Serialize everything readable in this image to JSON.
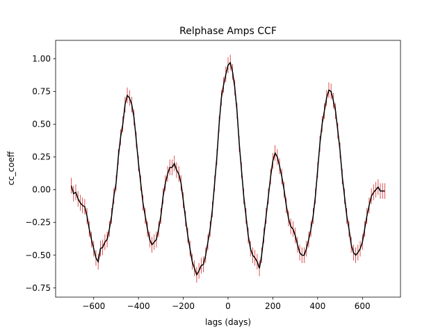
{
  "chart_data": {
    "type": "errorbar",
    "title": "Relphase Amps CCF",
    "xlabel": "lags (days)",
    "ylabel": "cc_coeff",
    "x": [
      -700,
      -690,
      -680,
      -670,
      -660,
      -650,
      -640,
      -630,
      -620,
      -610,
      -600,
      -590,
      -580,
      -570,
      -560,
      -550,
      -540,
      -530,
      -520,
      -510,
      -500,
      -490,
      -480,
      -470,
      -460,
      -450,
      -440,
      -430,
      -420,
      -410,
      -400,
      -390,
      -380,
      -370,
      -360,
      -350,
      -340,
      -330,
      -320,
      -310,
      -300,
      -290,
      -280,
      -270,
      -260,
      -250,
      -240,
      -230,
      -220,
      -210,
      -200,
      -190,
      -180,
      -170,
      -160,
      -150,
      -140,
      -130,
      -120,
      -110,
      -100,
      -90,
      -80,
      -70,
      -60,
      -50,
      -40,
      -30,
      -20,
      -10,
      0,
      10,
      20,
      30,
      40,
      50,
      60,
      70,
      80,
      90,
      100,
      110,
      120,
      130,
      140,
      150,
      160,
      170,
      180,
      190,
      200,
      210,
      220,
      230,
      240,
      250,
      260,
      270,
      280,
      290,
      300,
      310,
      320,
      330,
      340,
      350,
      360,
      370,
      380,
      390,
      400,
      410,
      420,
      430,
      440,
      450,
      460,
      470,
      480,
      490,
      500,
      510,
      520,
      530,
      540,
      550,
      560,
      570,
      580,
      590,
      600,
      610,
      620,
      630,
      640,
      650,
      660,
      670,
      680,
      690,
      700
    ],
    "series": [
      {
        "color": "#000000",
        "error_color": "#d62728",
        "yerr": 0.06,
        "values": [
          0.03,
          -0.03,
          -0.02,
          -0.07,
          -0.1,
          -0.12,
          -0.13,
          -0.2,
          -0.3,
          -0.38,
          -0.45,
          -0.52,
          -0.55,
          -0.45,
          -0.44,
          -0.4,
          -0.38,
          -0.3,
          -0.2,
          -0.05,
          0.05,
          0.25,
          0.4,
          0.5,
          0.65,
          0.72,
          0.7,
          0.65,
          0.55,
          0.38,
          0.2,
          0.05,
          -0.1,
          -0.2,
          -0.3,
          -0.38,
          -0.42,
          -0.4,
          -0.38,
          -0.3,
          -0.2,
          -0.05,
          0.05,
          0.12,
          0.17,
          0.17,
          0.2,
          0.15,
          0.12,
          0.05,
          -0.08,
          -0.22,
          -0.35,
          -0.45,
          -0.55,
          -0.6,
          -0.65,
          -0.62,
          -0.58,
          -0.57,
          -0.5,
          -0.4,
          -0.3,
          -0.15,
          0.05,
          0.25,
          0.5,
          0.7,
          0.8,
          0.88,
          0.95,
          0.97,
          0.9,
          0.78,
          0.6,
          0.35,
          0.15,
          -0.05,
          -0.2,
          -0.35,
          -0.45,
          -0.5,
          -0.52,
          -0.55,
          -0.6,
          -0.5,
          -0.35,
          -0.2,
          -0.05,
          0.1,
          0.22,
          0.28,
          0.25,
          0.18,
          0.1,
          0.0,
          -0.12,
          -0.22,
          -0.28,
          -0.3,
          -0.35,
          -0.42,
          -0.48,
          -0.5,
          -0.5,
          -0.45,
          -0.38,
          -0.3,
          -0.2,
          -0.05,
          0.15,
          0.35,
          0.5,
          0.6,
          0.7,
          0.76,
          0.75,
          0.68,
          0.6,
          0.45,
          0.3,
          0.1,
          -0.05,
          -0.2,
          -0.3,
          -0.42,
          -0.48,
          -0.5,
          -0.48,
          -0.45,
          -0.4,
          -0.3,
          -0.2,
          -0.12,
          -0.05,
          -0.02,
          0.0,
          0.02,
          -0.01,
          -0.01,
          -0.01
        ]
      }
    ],
    "xlim": [
      -770,
      770
    ],
    "ylim": [
      -0.82,
      1.14
    ],
    "xticks": [
      {
        "value": -600,
        "label": "−600"
      },
      {
        "value": -400,
        "label": "−400"
      },
      {
        "value": -200,
        "label": "−200"
      },
      0,
      200,
      400,
      600
    ],
    "yticks": [
      {
        "value": -0.75,
        "label": "−0.75"
      },
      {
        "value": -0.5,
        "label": "−0.50"
      },
      {
        "value": -0.25,
        "label": "−0.25"
      },
      {
        "value": 0,
        "label": "0.00"
      },
      {
        "value": 0.25,
        "label": "0.25"
      },
      {
        "value": 0.5,
        "label": "0.50"
      },
      {
        "value": 0.75,
        "label": "0.75"
      },
      {
        "value": 1,
        "label": "1.00"
      }
    ]
  }
}
